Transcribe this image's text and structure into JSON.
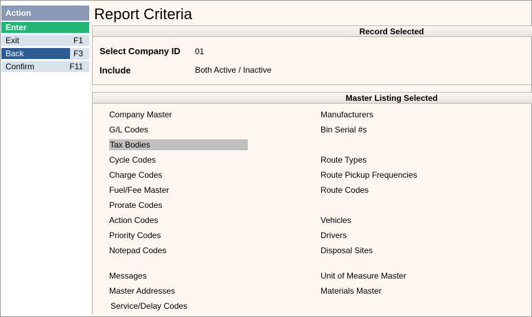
{
  "sidebar": {
    "header": "Action",
    "items": [
      {
        "label": "Enter",
        "key": ""
      },
      {
        "label": "Exit",
        "key": "F1"
      },
      {
        "label": "Back",
        "key": "F3"
      },
      {
        "label": "Confirm",
        "key": "F11"
      }
    ]
  },
  "title": "Report Criteria",
  "record": {
    "header": "Record Selected",
    "company_label": "Select Company ID",
    "company_value": "01",
    "include_label": "Include",
    "include_value": "Both Active / Inactive"
  },
  "master": {
    "header": "Master Listing Selected",
    "left": [
      "Company Master",
      "G/L Codes",
      "Tax Bodies",
      "Cycle Codes",
      "Charge Codes",
      "Fuel/Fee Master",
      "Prorate Codes",
      "Action Codes",
      "Priority Codes",
      "Notepad Codes",
      "Messages",
      "Master Addresses",
      "Service/Delay Codes"
    ],
    "right": [
      "Manufacturers",
      "Bin Serial #s",
      "Route Types",
      "Route Pickup Frequencies",
      "Route Codes",
      "Vehicles",
      "Drivers",
      "Disposal Sites",
      "Unit of Measure Master",
      "Materials Master"
    ]
  },
  "colors": {
    "background": "#fdf6f1",
    "action_header": "#8a99b5",
    "enter": "#22b573",
    "selected_action": "#2e5b94",
    "action_item": "#d9e3ee",
    "selected_listing": "#c0c0c0"
  }
}
